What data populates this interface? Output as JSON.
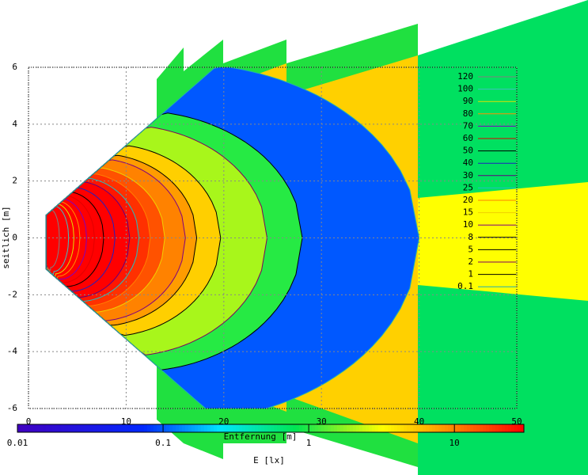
{
  "chart_data": {
    "type": "contour",
    "xlabel": "Entfernung [m]",
    "ylabel": "seitlich [m]",
    "xlim": [
      0,
      50
    ],
    "xticks": [
      0,
      10,
      20,
      30,
      40,
      50
    ],
    "ylim": [
      -6,
      6
    ],
    "yticks": [
      -6,
      -4,
      -2,
      0,
      2,
      4,
      6
    ],
    "grid": true,
    "levels": [
      120,
      100,
      90,
      80,
      70,
      60,
      50,
      40,
      30,
      25,
      20,
      15,
      10,
      8,
      5,
      2,
      1,
      0.1
    ],
    "level_colors": [
      "#808080",
      "#40c0c0",
      "#e0e000",
      "#ff9000",
      "#8000c0",
      "#e00000",
      "#000000",
      "#2020c0",
      "#600080",
      "#20c0c0",
      "#ff8000",
      "#f0d000",
      "#800080",
      "#000000",
      "#000000",
      "#800060",
      "#000000",
      "#20b0b0"
    ],
    "colorbar": {
      "label": "E [lx]",
      "lim": [
        0.01,
        30
      ],
      "log": true,
      "ticks": [
        0.01,
        0.1,
        1,
        10
      ]
    }
  }
}
